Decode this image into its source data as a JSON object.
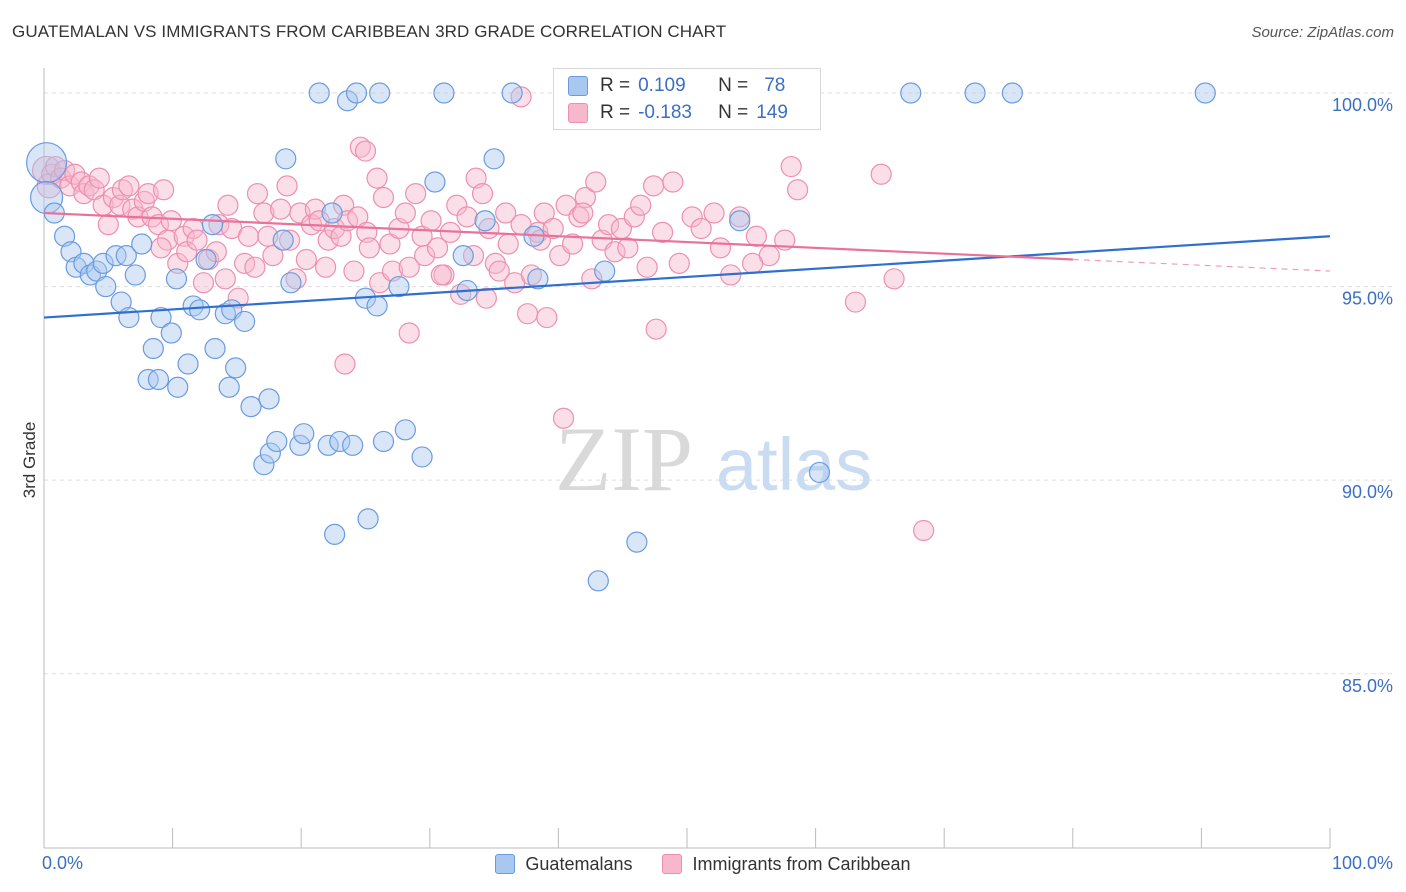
{
  "title": "GUATEMALAN VS IMMIGRANTS FROM CARIBBEAN 3RD GRADE CORRELATION CHART",
  "source": "Source: ZipAtlas.com",
  "watermark": {
    "zip": "ZIP",
    "atlas": "atlas"
  },
  "colors": {
    "blue_fill": "#a8c8f0",
    "blue_stroke": "#6a9be0",
    "blue_line": "#2e6fcf",
    "pink_fill": "#f7b8cc",
    "pink_stroke": "#ee8fb0",
    "pink_line": "#e8729a",
    "axis_label": "#3b6fc4",
    "grid": "#dddddd"
  },
  "stats": {
    "row1": {
      "r_label": "R =",
      "r_value": "0.109",
      "n_label": "N =",
      "n_value": "78"
    },
    "row2": {
      "r_label": "R =",
      "r_value": "-0.183",
      "n_label": "N =",
      "n_value": "149"
    }
  },
  "legend": {
    "series1": "Guatemalans",
    "series2": "Immigrants from Caribbean"
  },
  "chart_data": {
    "type": "scatter",
    "ylabel": "3rd Grade",
    "xlim": [
      0,
      100
    ],
    "ylim": [
      80.5,
      100.8
    ],
    "x_tick_labels": [
      "0.0%",
      "100.0%"
    ],
    "y_ticks": [
      85,
      90,
      95,
      100
    ],
    "y_tick_labels": [
      "85.0%",
      "90.0%",
      "95.0%",
      "100.0%"
    ],
    "grid": true,
    "legend_position": "bottom",
    "series": [
      {
        "name": "Guatemalans",
        "color": "blue",
        "trend": {
          "x": [
            0,
            100
          ],
          "y": [
            94.2,
            96.3
          ]
        },
        "points": [
          [
            0.2,
            98.2,
            20
          ],
          [
            0.2,
            97.3,
            16
          ],
          [
            0.8,
            96.9,
            10
          ],
          [
            1.6,
            96.3,
            10
          ],
          [
            2.1,
            95.9,
            10
          ],
          [
            2.5,
            95.5,
            10
          ],
          [
            3.1,
            95.6,
            10
          ],
          [
            3.6,
            95.3,
            10
          ],
          [
            4.1,
            95.4,
            10
          ],
          [
            4.6,
            95.6,
            10
          ],
          [
            4.8,
            95.0,
            10
          ],
          [
            5.6,
            95.8,
            10
          ],
          [
            6.0,
            94.6,
            10
          ],
          [
            6.4,
            95.8,
            10
          ],
          [
            6.6,
            94.2,
            10
          ],
          [
            7.1,
            95.3,
            10
          ],
          [
            7.6,
            96.1,
            10
          ],
          [
            8.1,
            92.6,
            10
          ],
          [
            8.5,
            93.4,
            10
          ],
          [
            8.9,
            92.6,
            10
          ],
          [
            9.1,
            94.2,
            10
          ],
          [
            9.9,
            93.8,
            10
          ],
          [
            10.3,
            95.2,
            10
          ],
          [
            10.4,
            92.4,
            10
          ],
          [
            11.2,
            93.0,
            10
          ],
          [
            11.6,
            94.5,
            10
          ],
          [
            12.1,
            94.4,
            10
          ],
          [
            12.6,
            95.7,
            10
          ],
          [
            13.1,
            96.6,
            10
          ],
          [
            13.3,
            93.4,
            10
          ],
          [
            14.1,
            94.3,
            10
          ],
          [
            14.4,
            92.4,
            10
          ],
          [
            14.6,
            94.4,
            10
          ],
          [
            14.9,
            92.9,
            10
          ],
          [
            15.6,
            94.1,
            10
          ],
          [
            16.1,
            91.9,
            10
          ],
          [
            17.1,
            90.4,
            10
          ],
          [
            17.5,
            92.1,
            10
          ],
          [
            17.6,
            90.7,
            10
          ],
          [
            18.1,
            91.0,
            10
          ],
          [
            18.6,
            96.2,
            10
          ],
          [
            18.8,
            98.3,
            10
          ],
          [
            19.2,
            95.1,
            10
          ],
          [
            19.9,
            90.9,
            10
          ],
          [
            20.2,
            91.2,
            10
          ],
          [
            21.4,
            100.0,
            10
          ],
          [
            22.1,
            90.9,
            10
          ],
          [
            22.4,
            96.9,
            10
          ],
          [
            22.6,
            88.6,
            10
          ],
          [
            23.0,
            91.0,
            10
          ],
          [
            23.6,
            99.8,
            10
          ],
          [
            24.0,
            90.9,
            10
          ],
          [
            24.3,
            100.0,
            10
          ],
          [
            25.0,
            94.7,
            10
          ],
          [
            25.2,
            89.0,
            10
          ],
          [
            25.9,
            94.5,
            10
          ],
          [
            26.1,
            100.0,
            10
          ],
          [
            26.4,
            91.0,
            10
          ],
          [
            27.6,
            95.0,
            10
          ],
          [
            28.1,
            91.3,
            10
          ],
          [
            29.4,
            90.6,
            10
          ],
          [
            30.4,
            97.7,
            10
          ],
          [
            31.1,
            100.0,
            10
          ],
          [
            32.6,
            95.8,
            10
          ],
          [
            32.9,
            94.9,
            10
          ],
          [
            34.3,
            96.7,
            10
          ],
          [
            35.0,
            98.3,
            10
          ],
          [
            36.4,
            100.0,
            10
          ],
          [
            38.1,
            96.3,
            10
          ],
          [
            38.4,
            95.2,
            10
          ],
          [
            43.1,
            87.4,
            10
          ],
          [
            46.1,
            88.4,
            10
          ],
          [
            54.1,
            96.7,
            10
          ],
          [
            60.3,
            90.2,
            10
          ],
          [
            67.4,
            100.0,
            10
          ],
          [
            72.4,
            100.0,
            10
          ],
          [
            75.3,
            100.0,
            10
          ],
          [
            90.3,
            100.0,
            10
          ],
          [
            43.6,
            95.4,
            10
          ]
        ]
      },
      {
        "name": "Immigrants from Caribbean",
        "color": "pink",
        "trend": {
          "x": [
            0,
            80
          ],
          "y": [
            96.9,
            95.7
          ]
        },
        "trend_dashed": {
          "x": [
            80,
            100
          ],
          "y": [
            95.7,
            95.4
          ]
        },
        "points": [
          [
            0.2,
            98.0,
            14
          ],
          [
            0.4,
            97.6,
            12
          ],
          [
            0.6,
            97.9,
            10
          ],
          [
            0.9,
            98.1,
            10
          ],
          [
            1.3,
            97.8,
            10
          ],
          [
            1.6,
            98.0,
            10
          ],
          [
            2.0,
            97.6,
            10
          ],
          [
            2.4,
            97.9,
            10
          ],
          [
            2.9,
            97.7,
            10
          ],
          [
            3.1,
            97.4,
            10
          ],
          [
            3.5,
            97.6,
            10
          ],
          [
            3.9,
            97.5,
            10
          ],
          [
            4.3,
            97.8,
            10
          ],
          [
            4.6,
            97.1,
            10
          ],
          [
            5.0,
            96.6,
            10
          ],
          [
            5.4,
            97.3,
            10
          ],
          [
            5.9,
            97.1,
            10
          ],
          [
            6.1,
            97.5,
            10
          ],
          [
            6.6,
            97.6,
            10
          ],
          [
            6.9,
            97.0,
            10
          ],
          [
            7.3,
            96.8,
            10
          ],
          [
            7.8,
            97.2,
            10
          ],
          [
            8.1,
            97.4,
            10
          ],
          [
            8.4,
            96.8,
            10
          ],
          [
            8.9,
            96.6,
            10
          ],
          [
            9.3,
            97.5,
            10
          ],
          [
            9.6,
            96.2,
            10
          ],
          [
            9.9,
            96.7,
            10
          ],
          [
            10.4,
            95.6,
            10
          ],
          [
            10.9,
            96.3,
            10
          ],
          [
            11.1,
            95.9,
            10
          ],
          [
            11.6,
            96.5,
            10
          ],
          [
            11.9,
            96.2,
            10
          ],
          [
            12.4,
            95.1,
            10
          ],
          [
            12.8,
            95.7,
            10
          ],
          [
            13.4,
            95.9,
            10
          ],
          [
            13.6,
            96.6,
            10
          ],
          [
            14.1,
            95.2,
            10
          ],
          [
            14.3,
            97.1,
            10
          ],
          [
            14.6,
            96.5,
            10
          ],
          [
            15.1,
            94.7,
            10
          ],
          [
            15.6,
            95.6,
            10
          ],
          [
            15.9,
            96.3,
            10
          ],
          [
            16.4,
            95.5,
            10
          ],
          [
            16.6,
            97.4,
            10
          ],
          [
            17.1,
            96.9,
            10
          ],
          [
            17.4,
            96.3,
            10
          ],
          [
            17.8,
            95.8,
            10
          ],
          [
            18.4,
            97.0,
            10
          ],
          [
            18.9,
            97.6,
            10
          ],
          [
            19.1,
            96.2,
            10
          ],
          [
            19.6,
            95.2,
            10
          ],
          [
            19.9,
            96.9,
            10
          ],
          [
            20.4,
            95.7,
            10
          ],
          [
            20.8,
            96.6,
            10
          ],
          [
            21.1,
            97.0,
            10
          ],
          [
            21.4,
            96.7,
            10
          ],
          [
            21.9,
            95.5,
            10
          ],
          [
            22.1,
            96.2,
            10
          ],
          [
            22.6,
            96.5,
            10
          ],
          [
            23.1,
            96.3,
            10
          ],
          [
            23.3,
            97.1,
            10
          ],
          [
            23.6,
            96.7,
            10
          ],
          [
            24.1,
            95.4,
            10
          ],
          [
            24.4,
            96.8,
            10
          ],
          [
            24.6,
            98.6,
            10
          ],
          [
            25.1,
            96.4,
            10
          ],
          [
            25.3,
            96.0,
            10
          ],
          [
            25.9,
            97.8,
            10
          ],
          [
            26.1,
            95.1,
            10
          ],
          [
            26.4,
            97.3,
            10
          ],
          [
            26.9,
            96.1,
            10
          ],
          [
            27.1,
            95.4,
            10
          ],
          [
            27.6,
            96.5,
            10
          ],
          [
            28.1,
            96.9,
            10
          ],
          [
            28.4,
            95.5,
            10
          ],
          [
            28.9,
            97.4,
            10
          ],
          [
            29.4,
            96.3,
            10
          ],
          [
            29.6,
            95.8,
            10
          ],
          [
            30.1,
            96.7,
            10
          ],
          [
            30.6,
            96.0,
            10
          ],
          [
            31.1,
            95.3,
            10
          ],
          [
            31.6,
            96.4,
            10
          ],
          [
            32.1,
            97.1,
            10
          ],
          [
            32.4,
            94.8,
            10
          ],
          [
            32.9,
            96.8,
            10
          ],
          [
            33.4,
            95.8,
            10
          ],
          [
            33.6,
            97.8,
            10
          ],
          [
            34.1,
            97.4,
            10
          ],
          [
            34.6,
            96.5,
            10
          ],
          [
            35.1,
            95.6,
            10
          ],
          [
            35.4,
            95.4,
            10
          ],
          [
            35.9,
            96.9,
            10
          ],
          [
            36.1,
            96.1,
            10
          ],
          [
            36.6,
            95.1,
            10
          ],
          [
            37.1,
            96.6,
            10
          ],
          [
            37.6,
            94.3,
            10
          ],
          [
            37.9,
            95.3,
            10
          ],
          [
            38.4,
            96.4,
            10
          ],
          [
            38.9,
            96.9,
            10
          ],
          [
            39.1,
            94.2,
            10
          ],
          [
            39.6,
            96.5,
            10
          ],
          [
            40.1,
            95.8,
            10
          ],
          [
            40.6,
            97.1,
            10
          ],
          [
            41.1,
            96.1,
            10
          ],
          [
            41.6,
            96.8,
            10
          ],
          [
            42.1,
            97.3,
            10
          ],
          [
            42.6,
            95.2,
            10
          ],
          [
            42.9,
            97.7,
            10
          ],
          [
            43.4,
            96.2,
            10
          ],
          [
            43.9,
            96.6,
            10
          ],
          [
            44.4,
            95.9,
            10
          ],
          [
            44.9,
            96.5,
            10
          ],
          [
            45.4,
            96.0,
            10
          ],
          [
            45.9,
            96.8,
            10
          ],
          [
            46.4,
            97.1,
            10
          ],
          [
            46.9,
            95.5,
            10
          ],
          [
            47.4,
            97.6,
            10
          ],
          [
            48.1,
            96.4,
            10
          ],
          [
            48.9,
            97.7,
            10
          ],
          [
            49.4,
            95.6,
            10
          ],
          [
            50.4,
            96.8,
            10
          ],
          [
            51.1,
            96.5,
            10
          ],
          [
            52.1,
            96.9,
            10
          ],
          [
            52.6,
            96.0,
            10
          ],
          [
            53.4,
            95.3,
            10
          ],
          [
            54.1,
            96.8,
            10
          ],
          [
            55.4,
            96.3,
            10
          ],
          [
            56.4,
            95.8,
            10
          ],
          [
            57.6,
            96.2,
            10
          ],
          [
            58.1,
            98.1,
            10
          ],
          [
            58.6,
            97.5,
            10
          ],
          [
            63.1,
            94.6,
            10
          ],
          [
            65.1,
            97.9,
            10
          ],
          [
            66.1,
            95.2,
            10
          ],
          [
            68.4,
            88.7,
            10
          ],
          [
            37.1,
            99.9,
            10
          ],
          [
            25.0,
            98.5,
            10
          ],
          [
            9.1,
            96.0,
            10
          ],
          [
            23.4,
            93.0,
            10
          ],
          [
            28.4,
            93.8,
            10
          ],
          [
            30.9,
            95.3,
            10
          ],
          [
            34.4,
            94.7,
            10
          ],
          [
            38.6,
            96.2,
            10
          ],
          [
            41.9,
            96.9,
            10
          ],
          [
            47.6,
            93.9,
            10
          ],
          [
            55.1,
            95.6,
            10
          ],
          [
            40.4,
            91.6,
            10
          ]
        ]
      }
    ]
  }
}
